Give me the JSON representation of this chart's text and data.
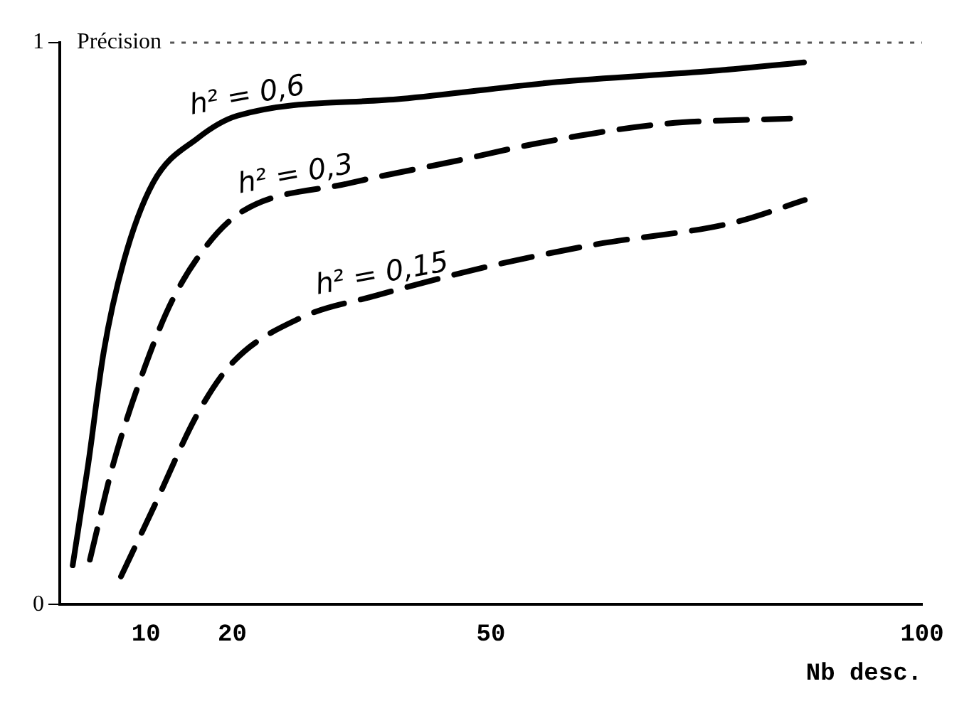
{
  "chart_data": {
    "type": "line",
    "ylabel": "Précision",
    "xlabel": "Nb desc.",
    "xlim": [
      0,
      100
    ],
    "xticks": [
      10,
      20,
      50,
      100
    ],
    "ylim": [
      0,
      1
    ],
    "yticks": [
      0,
      1
    ],
    "grid": false,
    "legend": false,
    "marker": "none",
    "series": [
      {
        "color": "#000000",
        "line_style": "solid",
        "x": [
          1.5,
          3.3,
          5.1,
          7.4,
          10.8,
          16,
          20.6,
          39.6,
          57.7,
          75.9,
          86.3
        ],
        "values": [
          0.07,
          0.25,
          0.45,
          0.61,
          0.75,
          0.83,
          0.87,
          0.9,
          0.93,
          0.95,
          0.965
        ]
      },
      {
        "color": "#000000",
        "line_style": "dashed",
        "x": [
          3.5,
          6.2,
          9.8,
          13,
          17.1,
          21.2,
          33.6,
          46.1,
          55.1,
          69.7,
          84.7
        ],
        "values": [
          0.08,
          0.25,
          0.42,
          0.54,
          0.64,
          0.7,
          0.75,
          0.79,
          0.82,
          0.855,
          0.865
        ]
      },
      {
        "color": "#000000",
        "line_style": "dashed",
        "x": [
          7.1,
          10.8,
          16,
          20,
          27.9,
          36.7,
          49.2,
          61.8,
          78.2,
          86.4
        ],
        "values": [
          0.05,
          0.17,
          0.34,
          0.43,
          0.51,
          0.55,
          0.6,
          0.64,
          0.68,
          0.72
        ]
      }
    ],
    "annotations": [
      {
        "text": "h² = 0,6",
        "x": 15.4,
        "y": 0.84
      },
      {
        "text": "h² = 0,3",
        "x": 21,
        "y": 0.7
      },
      {
        "text": "h² = 0,15",
        "x": 30,
        "y": 0.52
      }
    ],
    "ref_lines": [
      {
        "axis": "y",
        "value": 1,
        "line_style": "dotted",
        "color": "#555555"
      }
    ]
  }
}
